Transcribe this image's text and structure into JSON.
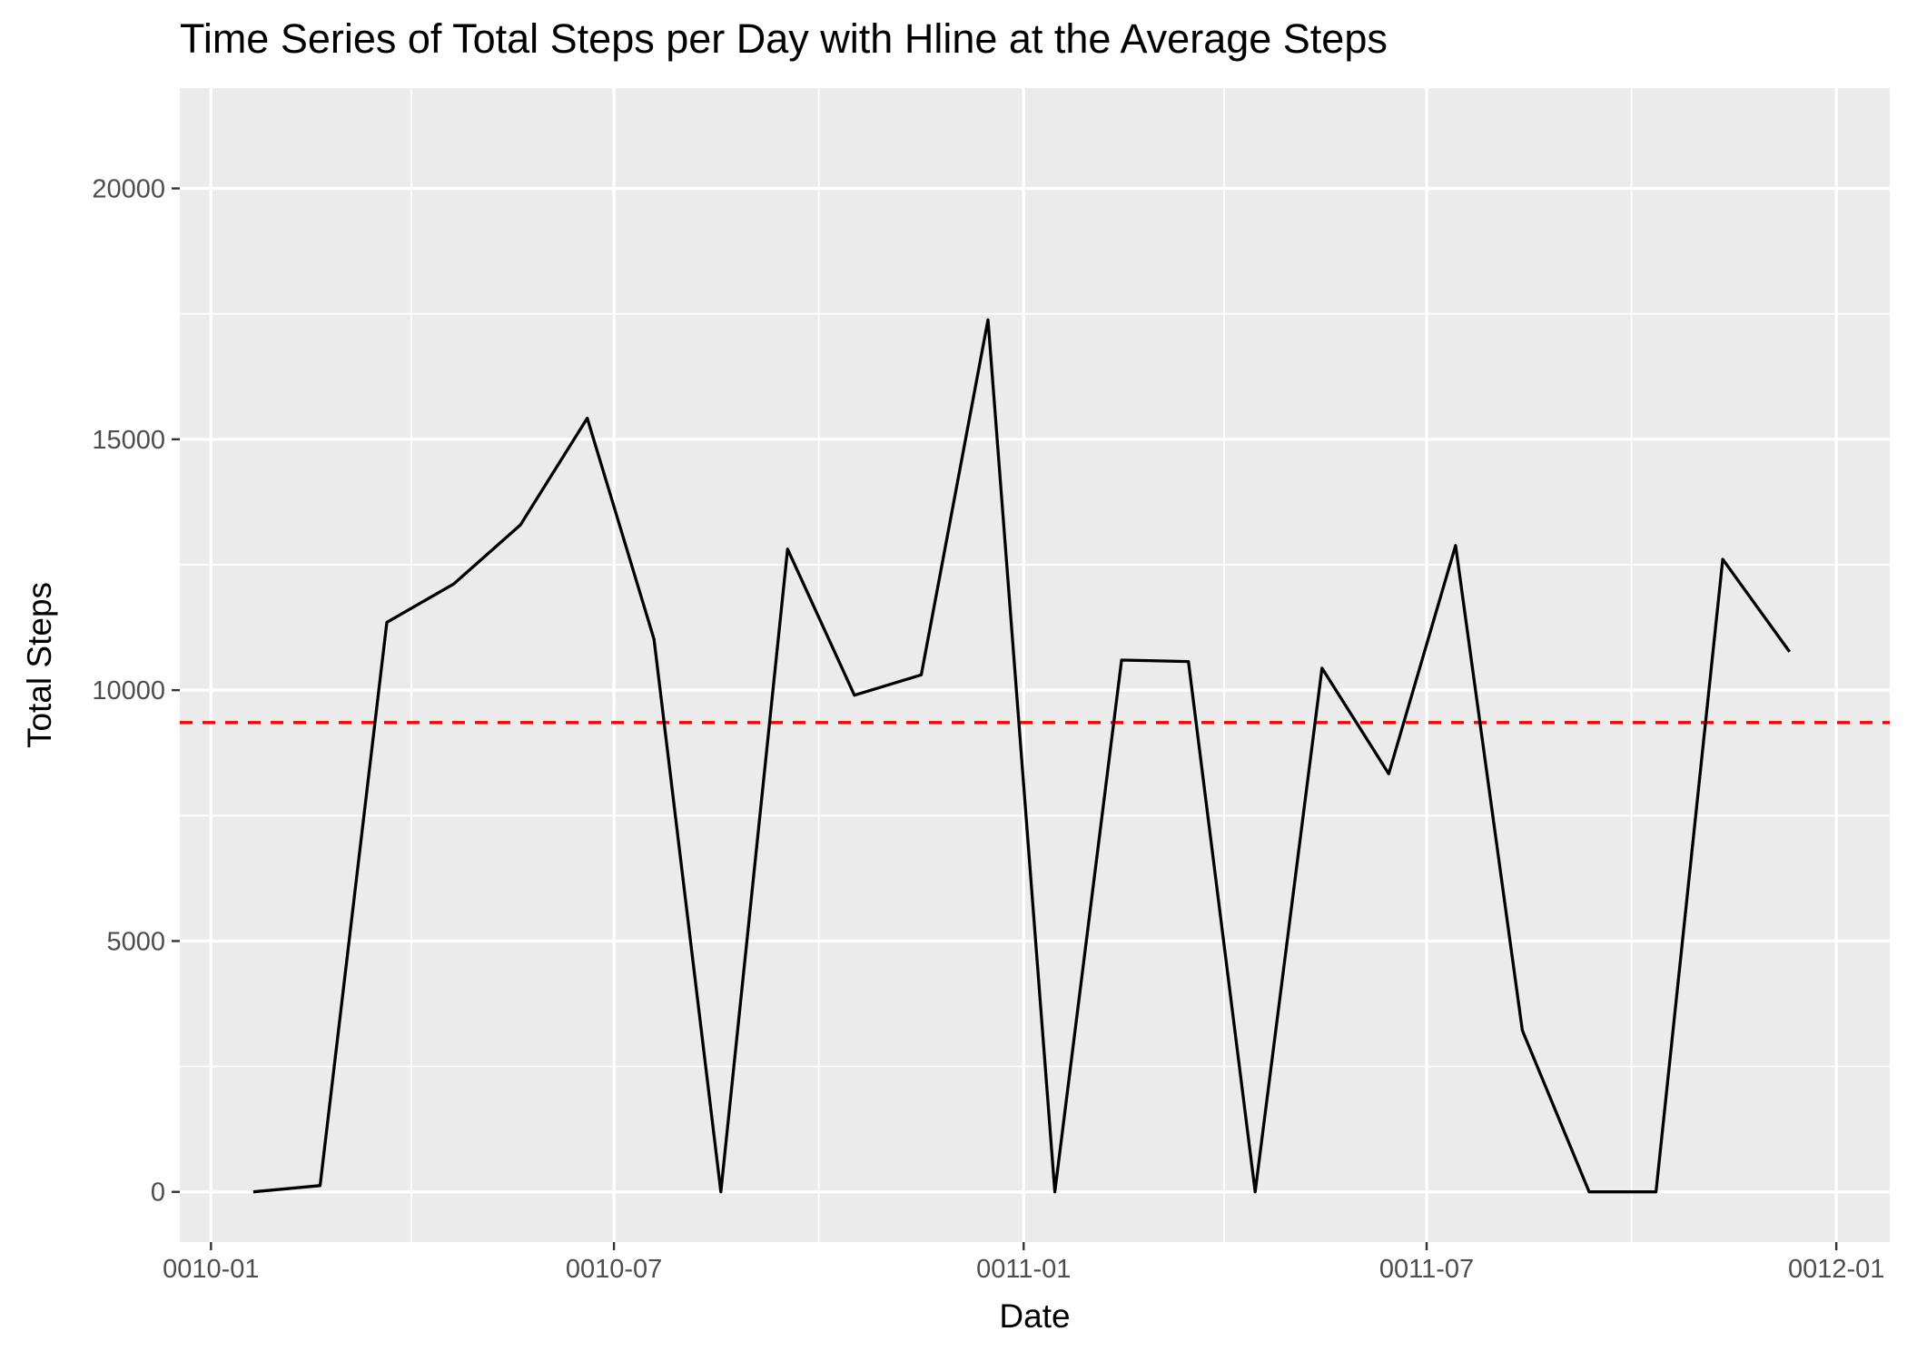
{
  "chart_data": {
    "type": "line",
    "title": "Time Series of Total Steps per Day with Hline at the Average Steps",
    "xlabel": "Date",
    "ylabel": "Total Steps",
    "x_type": "date",
    "xlim": [
      "0009-12-18",
      "0012-01-25"
    ],
    "ylim": [
      -1000,
      22000
    ],
    "x_ticks": [
      {
        "date": "0010-01-01",
        "label": "0010-01"
      },
      {
        "date": "0010-07-01",
        "label": "0010-07"
      },
      {
        "date": "0011-01-01",
        "label": "0011-01"
      },
      {
        "date": "0011-07-01",
        "label": "0011-07"
      },
      {
        "date": "0012-01-01",
        "label": "0012-01"
      }
    ],
    "x_minor_ticks": [
      "0010-04-01",
      "0010-10-01",
      "0011-04-01",
      "0011-10-01"
    ],
    "y_ticks": [
      0,
      5000,
      10000,
      15000,
      20000
    ],
    "y_tick_labels": [
      "0",
      "5000",
      "10000",
      "15000",
      "20000"
    ],
    "y_minor_ticks": [
      2500,
      7500,
      12500,
      17500
    ],
    "grid": true,
    "legend": "none",
    "series": [
      {
        "color": "#000000",
        "points": [
          {
            "x": "0010-01-20",
            "y": 0
          },
          {
            "x": "0010-02-19",
            "y": 126
          },
          {
            "x": "0010-03-21",
            "y": 11352
          },
          {
            "x": "0010-04-20",
            "y": 12116
          },
          {
            "x": "0010-05-20",
            "y": 13294
          },
          {
            "x": "0010-06-19",
            "y": 15420
          },
          {
            "x": "0010-07-19",
            "y": 11015
          },
          {
            "x": "0010-08-18",
            "y": 0
          },
          {
            "x": "0010-09-17",
            "y": 12811
          },
          {
            "x": "0010-10-17",
            "y": 9900
          },
          {
            "x": "0010-11-16",
            "y": 10304
          },
          {
            "x": "0010-12-16",
            "y": 17382
          },
          {
            "x": "0011-01-15",
            "y": 0
          },
          {
            "x": "0011-02-14",
            "y": 10600
          },
          {
            "x": "0011-03-16",
            "y": 10571
          },
          {
            "x": "0011-04-15",
            "y": 0
          },
          {
            "x": "0011-05-15",
            "y": 10439
          },
          {
            "x": "0011-06-14",
            "y": 8334
          },
          {
            "x": "0011-07-14",
            "y": 12883
          },
          {
            "x": "0011-08-13",
            "y": 3219
          },
          {
            "x": "0011-09-12",
            "y": 0
          },
          {
            "x": "0011-10-12",
            "y": 0
          },
          {
            "x": "0011-11-11",
            "y": 12608
          },
          {
            "x": "0011-12-11",
            "y": 10765
          }
        ]
      }
    ],
    "hline": {
      "y": 9354.23,
      "color": "#ff0000",
      "linetype": "dashed"
    }
  }
}
